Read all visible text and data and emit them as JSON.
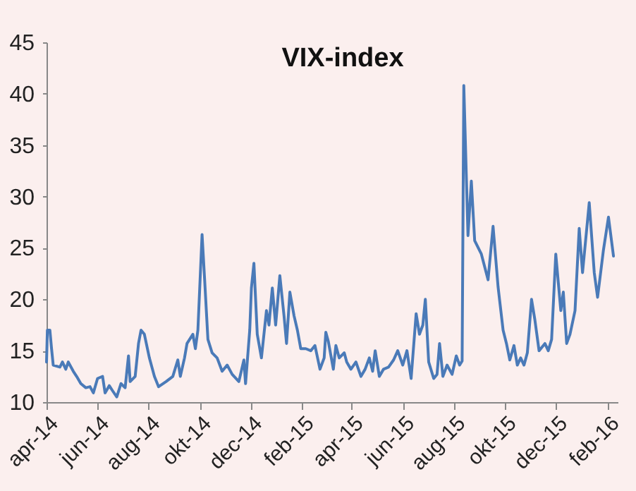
{
  "chart_data": {
    "type": "line",
    "title": "VIX-index",
    "x": [
      "2014-04-01",
      "2014-04-02",
      "2014-04-05",
      "2014-04-07",
      "2014-04-09",
      "2014-04-17",
      "2014-04-20",
      "2014-04-24",
      "2014-04-27",
      "2014-05-03",
      "2014-05-07",
      "2014-05-12",
      "2014-05-18",
      "2014-05-23",
      "2014-05-27",
      "2014-06-01",
      "2014-06-07",
      "2014-06-10",
      "2014-06-15",
      "2014-06-19",
      "2014-06-24",
      "2014-06-29",
      "2014-07-04",
      "2014-07-08",
      "2014-07-10",
      "2014-07-16",
      "2014-07-20",
      "2014-07-23",
      "2014-07-27",
      "2014-08-02",
      "2014-08-08",
      "2014-08-13",
      "2014-08-22",
      "2014-08-30",
      "2014-09-05",
      "2014-09-08",
      "2014-09-13",
      "2014-09-16",
      "2014-09-23",
      "2014-09-26",
      "2014-09-29",
      "2014-10-04",
      "2014-10-07",
      "2014-10-11",
      "2014-10-16",
      "2014-10-22",
      "2014-10-28",
      "2014-11-03",
      "2014-11-09",
      "2014-11-17",
      "2014-11-23",
      "2014-11-25",
      "2014-11-30",
      "2014-12-02",
      "2014-12-05",
      "2014-12-09",
      "2014-12-14",
      "2014-12-20",
      "2014-12-23",
      "2014-12-27",
      "2014-12-31",
      "2015-01-05",
      "2015-01-10",
      "2015-01-13",
      "2015-01-17",
      "2015-01-22",
      "2015-01-26",
      "2015-01-30",
      "2015-02-05",
      "2015-02-11",
      "2015-02-16",
      "2015-02-22",
      "2015-02-27",
      "2015-03-01",
      "2015-03-04",
      "2015-03-10",
      "2015-03-13",
      "2015-03-17",
      "2015-03-23",
      "2015-03-26",
      "2015-03-31",
      "2015-04-06",
      "2015-04-12",
      "2015-04-17",
      "2015-04-22",
      "2015-04-26",
      "2015-04-29",
      "2015-05-04",
      "2015-05-09",
      "2015-05-15",
      "2015-05-21",
      "2015-05-26",
      "2015-06-01",
      "2015-06-06",
      "2015-06-11",
      "2015-06-17",
      "2015-06-21",
      "2015-06-25",
      "2015-06-28",
      "2015-07-02",
      "2015-07-08",
      "2015-07-12",
      "2015-07-15",
      "2015-07-19",
      "2015-07-24",
      "2015-07-30",
      "2015-08-04",
      "2015-08-08",
      "2015-08-11",
      "2015-08-13",
      "2015-08-18",
      "2015-08-22",
      "2015-08-26",
      "2015-09-03",
      "2015-09-11",
      "2015-09-17",
      "2015-09-23",
      "2015-09-25",
      "2015-09-29",
      "2015-10-03",
      "2015-10-07",
      "2015-10-12",
      "2015-10-16",
      "2015-10-20",
      "2015-10-24",
      "2015-10-28",
      "2015-11-02",
      "2015-11-06",
      "2015-11-11",
      "2015-11-18",
      "2015-11-22",
      "2015-11-26",
      "2015-12-01",
      "2015-12-07",
      "2015-12-10",
      "2015-12-14",
      "2015-12-18",
      "2015-12-24",
      "2015-12-29",
      "2016-01-02",
      "2016-01-10",
      "2016-01-16",
      "2016-01-20",
      "2016-01-27",
      "2016-02-02",
      "2016-02-08"
    ],
    "series": [
      {
        "color": "#4a7ab8",
        "values": [
          13.9,
          17,
          17,
          15.2,
          13.6,
          13.4,
          13.9,
          13.2,
          13.9,
          13,
          12.5,
          11.8,
          11.4,
          11.5,
          10.9,
          12.3,
          12.5,
          10.9,
          11.6,
          11.1,
          10.5,
          11.8,
          11.4,
          14.5,
          12,
          12.5,
          15.7,
          17,
          16.6,
          14.3,
          12.5,
          11.5,
          12,
          12.5,
          14.1,
          12.5,
          14.3,
          15.7,
          16.6,
          15.2,
          17,
          26.3,
          22,
          16.1,
          14.8,
          14.3,
          13,
          13.6,
          12.7,
          12,
          14.1,
          11.8,
          17,
          21.1,
          23.5,
          16.6,
          14.3,
          18.9,
          17.5,
          21.1,
          17.5,
          22.3,
          18.4,
          15.7,
          20.7,
          18.4,
          17,
          15.2,
          15.2,
          15,
          15.5,
          13.2,
          14.3,
          16.8,
          15.9,
          13.2,
          15.5,
          14.3,
          14.8,
          13.9,
          13.2,
          13.9,
          12.5,
          13.2,
          14.3,
          13,
          15,
          12.5,
          13.2,
          13.4,
          14.1,
          15,
          13.6,
          15,
          12.3,
          18.6,
          16.6,
          17.5,
          20,
          13.9,
          12.3,
          12.7,
          15.7,
          12.5,
          13.6,
          12.7,
          14.5,
          13.6,
          14,
          40.8,
          26.2,
          31.5,
          25.7,
          24.4,
          21.9,
          27.1,
          21.2,
          19.8,
          17,
          15.7,
          14.1,
          15.5,
          13.6,
          14.3,
          13.6,
          14.8,
          20,
          18,
          15,
          15.7,
          15,
          16.1,
          24.4,
          18.9,
          20.7,
          15.7,
          16.6,
          18.9,
          26.9,
          22.6,
          29.4,
          22.6,
          20.2,
          24.8,
          28,
          24.2
        ]
      }
    ],
    "xlim": [
      "2014-04-01",
      "2016-02-13"
    ],
    "xticks": [
      {
        "value": "2014-04-01",
        "label": "apr-14"
      },
      {
        "value": "2014-06-01",
        "label": "jun-14"
      },
      {
        "value": "2014-08-01",
        "label": "aug-14"
      },
      {
        "value": "2014-10-01",
        "label": "okt-14"
      },
      {
        "value": "2014-12-01",
        "label": "dec-14"
      },
      {
        "value": "2015-02-01",
        "label": "feb-15"
      },
      {
        "value": "2015-04-01",
        "label": "apr-15"
      },
      {
        "value": "2015-06-01",
        "label": "jun-15"
      },
      {
        "value": "2015-08-01",
        "label": "aug-15"
      },
      {
        "value": "2015-10-01",
        "label": "okt-15"
      },
      {
        "value": "2015-12-01",
        "label": "dec-15"
      },
      {
        "value": "2016-02-01",
        "label": "feb-16"
      }
    ],
    "ylim": [
      10,
      45
    ],
    "yticks": [
      10,
      15,
      20,
      25,
      30,
      35,
      40,
      45
    ],
    "line_style": "solid"
  }
}
